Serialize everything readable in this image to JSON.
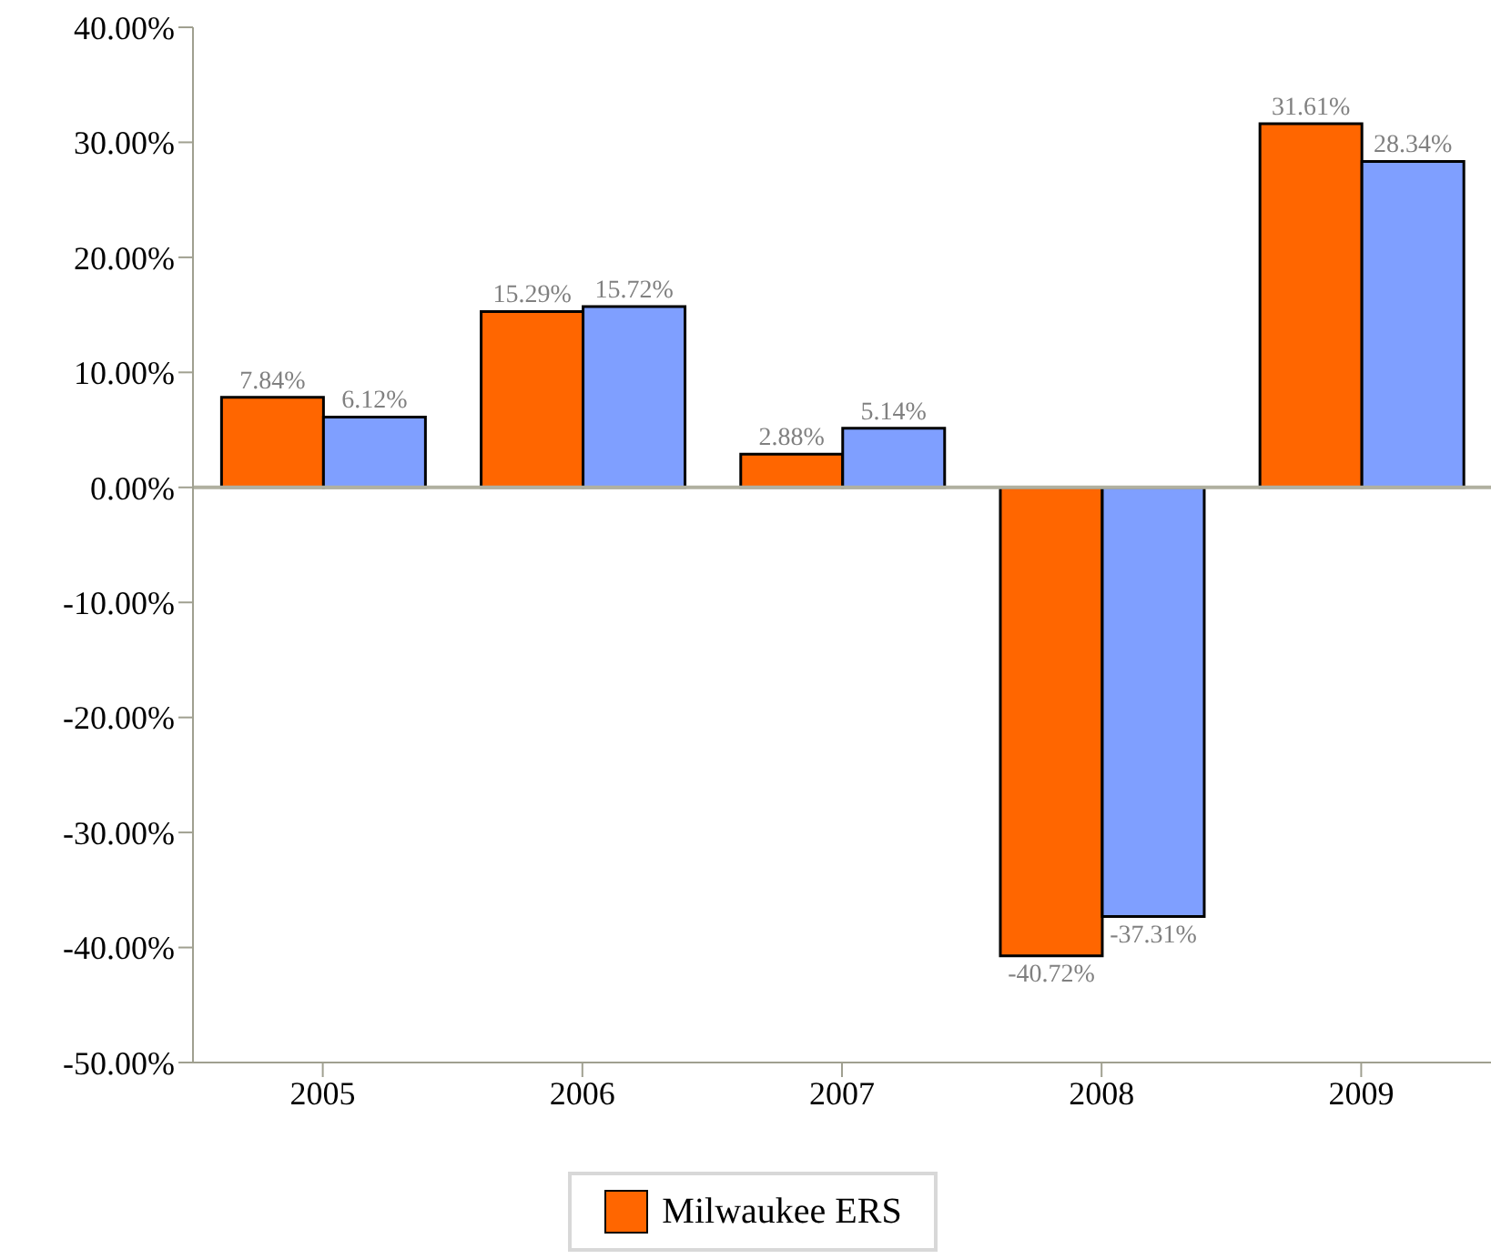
{
  "chart_data": {
    "type": "bar",
    "categories": [
      "2005",
      "2006",
      "2007",
      "2008",
      "2009"
    ],
    "series": [
      {
        "name": "Milwaukee ERS",
        "color": "#ff6600",
        "values": [
          7.84,
          15.29,
          2.88,
          -40.72,
          31.61
        ],
        "value_labels": [
          "7.84%",
          "15.29%",
          "2.88%",
          "-40.72%",
          "31.61%"
        ]
      },
      {
        "color": "#7f9fff",
        "values": [
          6.12,
          15.72,
          5.14,
          -37.31,
          28.34
        ],
        "value_labels": [
          "6.12%",
          "15.72%",
          "5.14%",
          "-37.31%",
          "28.34%"
        ]
      }
    ],
    "ylim": [
      -50,
      40
    ],
    "yticks": [
      {
        "value": 40,
        "label": "40.00%"
      },
      {
        "value": 30,
        "label": "30.00%"
      },
      {
        "value": 20,
        "label": "20.00%"
      },
      {
        "value": 10,
        "label": "10.00%"
      },
      {
        "value": 0,
        "label": "0.00%"
      },
      {
        "value": -10,
        "label": "-10.00%"
      },
      {
        "value": -20,
        "label": "-20.00%"
      },
      {
        "value": -30,
        "label": "-30.00%"
      },
      {
        "value": -40,
        "label": "-40.00%"
      },
      {
        "value": -50,
        "label": "-50.00%"
      }
    ],
    "ref_lines": [
      {
        "axis": "y",
        "value": 0,
        "color": "#b0b0a0"
      }
    ],
    "grid": false,
    "legend": "bottom"
  }
}
